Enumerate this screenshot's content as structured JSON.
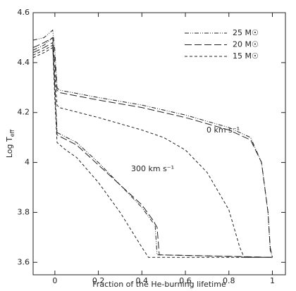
{
  "chart_data": {
    "type": "line",
    "xlabel": "Fraction of the He-burning lifetime",
    "ylabel": {
      "main": "Log T",
      "sub": "eff"
    },
    "annotations": [
      "0 km s⁻¹",
      "300 km s⁻¹"
    ],
    "xlim": [
      -0.1,
      1.06
    ],
    "ylim": [
      3.55,
      4.6
    ],
    "xticks": [
      0,
      0.2,
      0.4,
      0.6,
      0.8,
      1
    ],
    "yticks": [
      3.6,
      3.8,
      4,
      4.2,
      4.4,
      4.6
    ],
    "legend": "upper right",
    "series": [
      {
        "name": "25 M☉",
        "color": "#222222",
        "dash": "6 2 1 2 1 2",
        "tracks": [
          {
            "x": [
              -0.1,
              -0.05,
              -0.01,
              0,
              0.01,
              0.02,
              0.2,
              0.4,
              0.6,
              0.8,
              0.9,
              0.95,
              0.98,
              0.99,
              1
            ],
            "values": [
              4.49,
              4.5,
              4.53,
              4.45,
              4.3,
              4.29,
              4.26,
              4.23,
              4.19,
              4.14,
              4.1,
              4.0,
              3.8,
              3.65,
              3.62
            ]
          },
          {
            "x": [
              -0.1,
              -0.05,
              -0.01,
              0,
              0.01,
              0.1,
              0.2,
              0.3,
              0.4,
              0.45,
              0.46,
              0.47,
              1
            ],
            "values": [
              4.45,
              4.47,
              4.5,
              4.3,
              4.12,
              4.08,
              4.0,
              3.91,
              3.82,
              3.76,
              3.76,
              3.63,
              3.62
            ]
          }
        ]
      },
      {
        "name": "20 M☉",
        "color": "#222222",
        "dash": "10 4",
        "tracks": [
          {
            "x": [
              -0.1,
              -0.05,
              -0.01,
              0,
              0.01,
              0.02,
              0.2,
              0.4,
              0.6,
              0.8,
              0.9,
              0.95,
              0.98,
              0.99,
              1
            ],
            "values": [
              4.46,
              4.48,
              4.5,
              4.4,
              4.29,
              4.28,
              4.25,
              4.22,
              4.18,
              4.13,
              4.09,
              4.0,
              3.8,
              3.66,
              3.62
            ]
          },
          {
            "x": [
              -0.1,
              -0.05,
              -0.01,
              0,
              0.01,
              0.1,
              0.2,
              0.3,
              0.4,
              0.45,
              0.47,
              0.48,
              1
            ],
            "values": [
              4.44,
              4.46,
              4.48,
              4.3,
              4.11,
              4.07,
              3.99,
              3.91,
              3.83,
              3.77,
              3.74,
              3.63,
              3.62
            ]
          }
        ]
      },
      {
        "name": "15 M☉",
        "color": "#222222",
        "dash": "4 3",
        "tracks": [
          {
            "x": [
              -0.1,
              -0.05,
              -0.01,
              0,
              0.01,
              0.02,
              0.2,
              0.4,
              0.5,
              0.6,
              0.7,
              0.8,
              0.85,
              0.87,
              1
            ],
            "values": [
              4.42,
              4.44,
              4.46,
              4.35,
              4.23,
              4.22,
              4.18,
              4.13,
              4.1,
              4.05,
              3.96,
              3.81,
              3.66,
              3.62,
              3.62
            ]
          },
          {
            "x": [
              -0.1,
              -0.05,
              -0.01,
              0,
              0.01,
              0.05,
              0.1,
              0.2,
              0.3,
              0.4,
              0.43,
              1
            ],
            "values": [
              4.43,
              4.45,
              4.47,
              4.25,
              4.08,
              4.05,
              4.02,
              3.92,
              3.8,
              3.66,
              3.62,
              3.62
            ]
          }
        ]
      }
    ]
  }
}
